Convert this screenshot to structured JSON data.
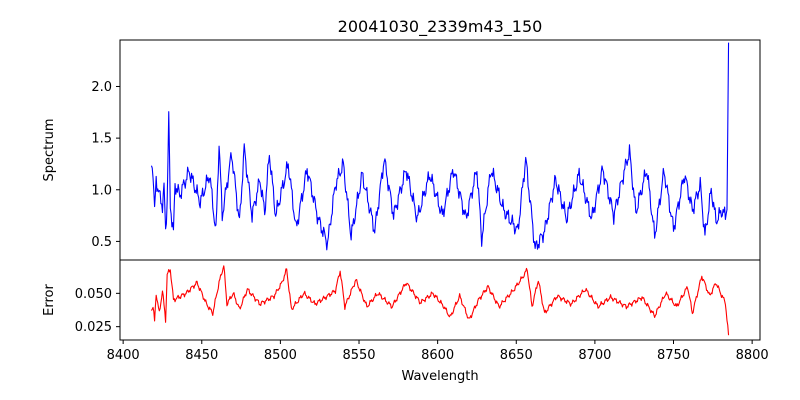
{
  "chart_data": {
    "type": "line",
    "title": "20041030_2339m43_150",
    "xlabel": "Wavelength",
    "x_ticks": [
      "8400",
      "8450",
      "8500",
      "8550",
      "8600",
      "8650",
      "8700",
      "8750",
      "8800"
    ],
    "xlim": [
      8398,
      8805
    ],
    "grid": false,
    "panels": [
      {
        "ylabel": "Spectrum",
        "ylim": [
          0.32,
          2.45
        ],
        "y_ticks": [
          "0.5",
          "1.0",
          "1.5",
          "2.0"
        ],
        "color": "#0000ff",
        "anchors": [
          [
            8418,
            1.27
          ],
          [
            8419,
            1.18
          ],
          [
            8420,
            0.78
          ],
          [
            8421,
            1.1
          ],
          [
            8423,
            0.95
          ],
          [
            8425,
            0.85
          ],
          [
            8426,
            1.02
          ],
          [
            8427,
            0.6
          ],
          [
            8428,
            0.9
          ],
          [
            8429,
            1.7
          ],
          [
            8430,
            0.85
          ],
          [
            8432,
            0.58
          ],
          [
            8433,
            1.05
          ],
          [
            8436,
            0.95
          ],
          [
            8442,
            1.18
          ],
          [
            8449,
            0.88
          ],
          [
            8455,
            1.15
          ],
          [
            8459,
            0.58
          ],
          [
            8461,
            1.45
          ],
          [
            8463,
            0.75
          ],
          [
            8469,
            1.35
          ],
          [
            8474,
            0.68
          ],
          [
            8477,
            1.4
          ],
          [
            8482,
            0.75
          ],
          [
            8487,
            1.1
          ],
          [
            8490,
            0.78
          ],
          [
            8493,
            1.35
          ],
          [
            8497,
            0.75
          ],
          [
            8505,
            1.25
          ],
          [
            8510,
            0.62
          ],
          [
            8517,
            1.2
          ],
          [
            8524,
            0.72
          ],
          [
            8530,
            0.48
          ],
          [
            8535,
            1.05
          ],
          [
            8540,
            1.25
          ],
          [
            8545,
            0.55
          ],
          [
            8552,
            1.15
          ],
          [
            8560,
            0.6
          ],
          [
            8566,
            1.3
          ],
          [
            8572,
            0.75
          ],
          [
            8580,
            1.2
          ],
          [
            8587,
            0.72
          ],
          [
            8595,
            1.15
          ],
          [
            8603,
            0.75
          ],
          [
            8610,
            1.2
          ],
          [
            8618,
            0.72
          ],
          [
            8625,
            1.2
          ],
          [
            8628,
            0.52
          ],
          [
            8634,
            1.2
          ],
          [
            8642,
            0.8
          ],
          [
            8651,
            0.6
          ],
          [
            8656,
            1.3
          ],
          [
            8662,
            0.43
          ],
          [
            8668,
            0.6
          ],
          [
            8675,
            1.1
          ],
          [
            8682,
            0.72
          ],
          [
            8690,
            1.15
          ],
          [
            8698,
            0.72
          ],
          [
            8705,
            1.2
          ],
          [
            8712,
            0.75
          ],
          [
            8719,
            1.2
          ],
          [
            8722,
            1.37
          ],
          [
            8726,
            0.78
          ],
          [
            8733,
            1.2
          ],
          [
            8738,
            0.55
          ],
          [
            8744,
            1.18
          ],
          [
            8750,
            0.62
          ],
          [
            8757,
            1.15
          ],
          [
            8762,
            0.8
          ],
          [
            8767,
            1.05
          ],
          [
            8770,
            0.55
          ],
          [
            8774,
            1.0
          ],
          [
            8777,
            0.7
          ],
          [
            8781,
            0.8
          ],
          [
            8783,
            0.74
          ],
          [
            8784,
            0.85
          ],
          [
            8785,
            2.35
          ]
        ]
      },
      {
        "ylabel": "Error",
        "ylim": [
          0.015,
          0.075
        ],
        "y_ticks": [
          "0.025",
          "0.050"
        ],
        "color": "#ff0000",
        "anchors": [
          [
            8418,
            0.038
          ],
          [
            8419,
            0.04
          ],
          [
            8420,
            0.029
          ],
          [
            8421,
            0.05
          ],
          [
            8423,
            0.035
          ],
          [
            8425,
            0.052
          ],
          [
            8427,
            0.03
          ],
          [
            8428,
            0.064
          ],
          [
            8430,
            0.068
          ],
          [
            8432,
            0.045
          ],
          [
            8440,
            0.05
          ],
          [
            8447,
            0.058
          ],
          [
            8453,
            0.042
          ],
          [
            8457,
            0.035
          ],
          [
            8461,
            0.058
          ],
          [
            8464,
            0.071
          ],
          [
            8466,
            0.042
          ],
          [
            8470,
            0.05
          ],
          [
            8474,
            0.038
          ],
          [
            8479,
            0.053
          ],
          [
            8487,
            0.042
          ],
          [
            8496,
            0.048
          ],
          [
            8501,
            0.058
          ],
          [
            8504,
            0.068
          ],
          [
            8507,
            0.038
          ],
          [
            8515,
            0.05
          ],
          [
            8522,
            0.042
          ],
          [
            8530,
            0.048
          ],
          [
            8535,
            0.052
          ],
          [
            8538,
            0.067
          ],
          [
            8541,
            0.04
          ],
          [
            8548,
            0.06
          ],
          [
            8555,
            0.04
          ],
          [
            8562,
            0.05
          ],
          [
            8571,
            0.04
          ],
          [
            8580,
            0.058
          ],
          [
            8589,
            0.043
          ],
          [
            8597,
            0.05
          ],
          [
            8604,
            0.04
          ],
          [
            8608,
            0.032
          ],
          [
            8614,
            0.048
          ],
          [
            8620,
            0.03
          ],
          [
            8626,
            0.045
          ],
          [
            8632,
            0.055
          ],
          [
            8639,
            0.04
          ],
          [
            8648,
            0.052
          ],
          [
            8654,
            0.062
          ],
          [
            8657,
            0.068
          ],
          [
            8660,
            0.04
          ],
          [
            8664,
            0.06
          ],
          [
            8668,
            0.035
          ],
          [
            8676,
            0.048
          ],
          [
            8685,
            0.042
          ],
          [
            8694,
            0.053
          ],
          [
            8702,
            0.04
          ],
          [
            8710,
            0.047
          ],
          [
            8720,
            0.04
          ],
          [
            8730,
            0.047
          ],
          [
            8738,
            0.033
          ],
          [
            8745,
            0.05
          ],
          [
            8752,
            0.04
          ],
          [
            8759,
            0.055
          ],
          [
            8762,
            0.035
          ],
          [
            8768,
            0.063
          ],
          [
            8773,
            0.048
          ],
          [
            8777,
            0.058
          ],
          [
            8780,
            0.05
          ],
          [
            8783,
            0.043
          ],
          [
            8785,
            0.018
          ]
        ]
      }
    ]
  }
}
